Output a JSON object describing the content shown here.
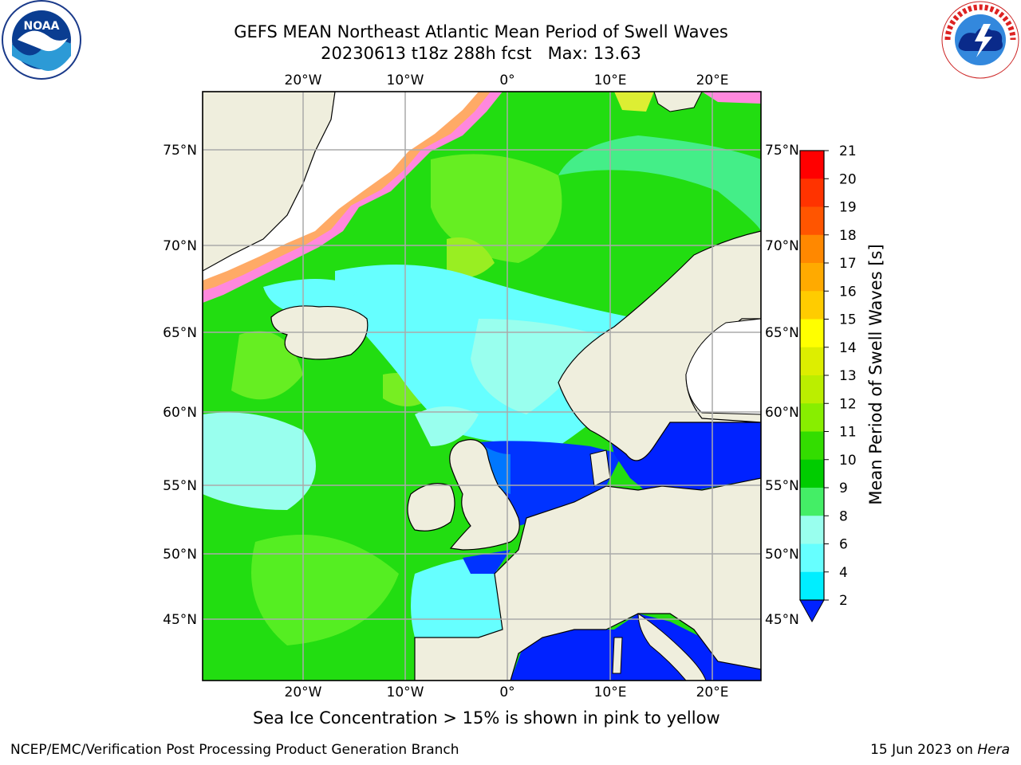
{
  "header": {
    "title_line1": "GEFS MEAN Northeast Atlantic Mean Period of Swell Waves",
    "title_line2": "20230613 t18z 288h fcst   Max: 13.63"
  },
  "logos": {
    "left": {
      "name": "noaa-logo",
      "text": "NOAA",
      "ring_text": "NATIONAL OCEANIC AND ATMOSPHERIC ADMINISTRATION · U.S. DEPARTMENT OF COMMERCE"
    },
    "right": {
      "name": "nws-logo",
      "ring_text": "NATIONAL WEATHER SERVICE"
    }
  },
  "map": {
    "lon_labels_top": [
      "20°W",
      "10°W",
      "0°",
      "10°E",
      "20°E"
    ],
    "lon_labels_bottom": [
      "20°W",
      "10°W",
      "0°",
      "10°E",
      "20°E"
    ],
    "lat_labels_left": [
      "75°N",
      "70°N",
      "65°N",
      "60°N",
      "55°N",
      "50°N",
      "45°N"
    ],
    "lat_labels_right": [
      "75°N",
      "70°N",
      "65°N",
      "60°N",
      "55°N",
      "50°N",
      "45°N"
    ]
  },
  "colorbar": {
    "label": "Mean Period of Swell Waves [s]",
    "ticks": [
      "21",
      "20",
      "19",
      "18",
      "17",
      "16",
      "15",
      "14",
      "13",
      "12",
      "11",
      "10",
      "9",
      "8",
      "6",
      "4",
      "2"
    ],
    "colors": [
      "#ff0000",
      "#ff3300",
      "#ff5500",
      "#ff8800",
      "#ffaa00",
      "#ffcc00",
      "#ffff00",
      "#ddee00",
      "#bbee00",
      "#88ee00",
      "#33dd00",
      "#00cc00",
      "#44ee66",
      "#99ffee",
      "#66ffff",
      "#00eeff",
      "#0077ff"
    ],
    "under_color": "#0022ff"
  },
  "caption": "Sea Ice Concentration > 15% is shown in pink to yellow",
  "footer": {
    "left": "NCEP/EMC/Verification Post Processing Product Generation Branch",
    "right_prefix": "15 Jun 2023 on ",
    "right_host": "Hera"
  }
}
